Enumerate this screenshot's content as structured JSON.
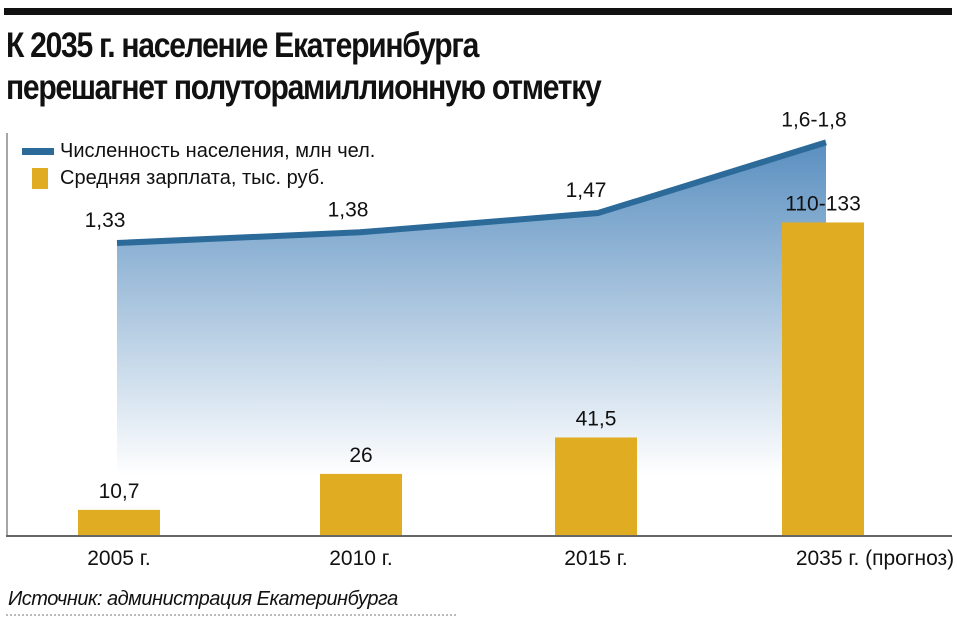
{
  "chart_data": {
    "type": "bar+line",
    "title": "К 2035 г. население Екатеринбурга перешагнет полуторамиллионную отметку",
    "title_lines": [
      "К 2035 г. население Екатеринбурга",
      "перешагнет полуторамиллионную отметку"
    ],
    "categories": [
      "2005 г.",
      "2010 г.",
      "2015 г.",
      "2035 г. (прогноз)"
    ],
    "series": [
      {
        "name": "Численность населения, млн чел.",
        "type": "area-line",
        "color": "#2c6a9a",
        "values": [
          1.33,
          1.38,
          1.47,
          1.8
        ],
        "labels": [
          "1,33",
          "1,38",
          "1,47",
          "1,6-1,8"
        ]
      },
      {
        "name": "Средняя зарплата, тыс. руб.",
        "type": "bar",
        "color": "#e0ac22",
        "values": [
          10.7,
          26,
          41.5,
          133
        ],
        "labels": [
          "10,7",
          "26",
          "41,5",
          "110-133"
        ]
      }
    ],
    "source": "Источник: администрация Екатеринбурга"
  }
}
